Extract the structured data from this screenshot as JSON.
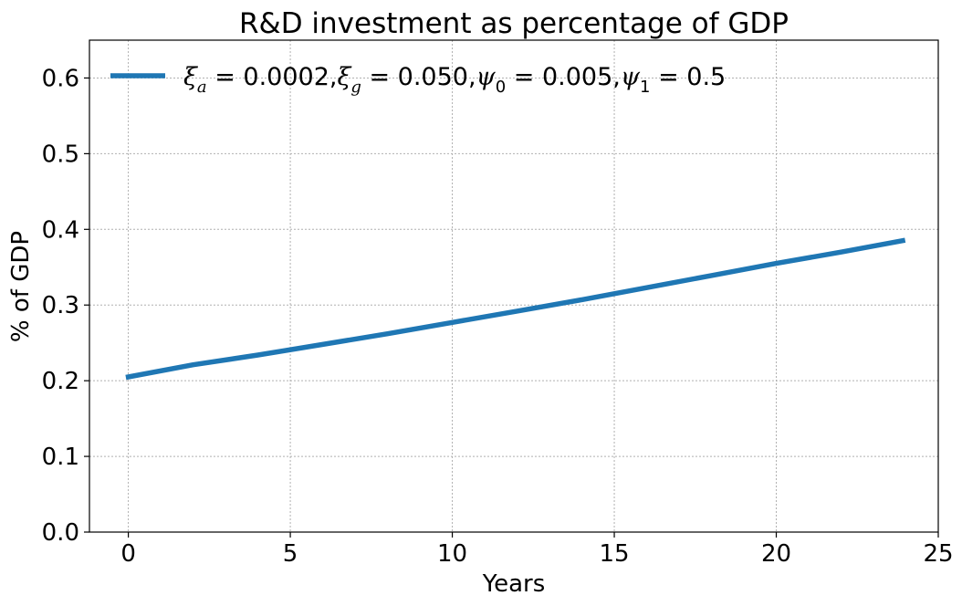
{
  "chart_data": {
    "type": "line",
    "title": "R&D investment as percentage of  GDP",
    "xlabel": "Years",
    "ylabel": "% of GDP",
    "xlim": [
      -1.2,
      25
    ],
    "ylim": [
      0.0,
      0.65
    ],
    "xticks": [
      0,
      5,
      10,
      15,
      20,
      25
    ],
    "yticks": [
      0.0,
      0.1,
      0.2,
      0.3,
      0.4,
      0.5,
      0.6
    ],
    "xtick_labels": [
      "0",
      "5",
      "10",
      "15",
      "20",
      "25"
    ],
    "ytick_labels": [
      "0.0",
      "0.1",
      "0.2",
      "0.3",
      "0.4",
      "0.5",
      "0.6"
    ],
    "grid": true,
    "legend_position": "top-left",
    "series": [
      {
        "name": "ξa=0.0002,ξg=0.050,ψ0=0.005,ψ1=0.5",
        "color": "#1f77b4",
        "x": [
          0,
          2,
          4,
          6,
          8,
          10,
          12,
          14,
          16,
          18,
          20,
          22,
          23.9
        ],
        "values": [
          0.205,
          0.221,
          0.234,
          0.248,
          0.262,
          0.277,
          0.292,
          0.307,
          0.323,
          0.339,
          0.355,
          0.37,
          0.385
        ]
      }
    ]
  }
}
